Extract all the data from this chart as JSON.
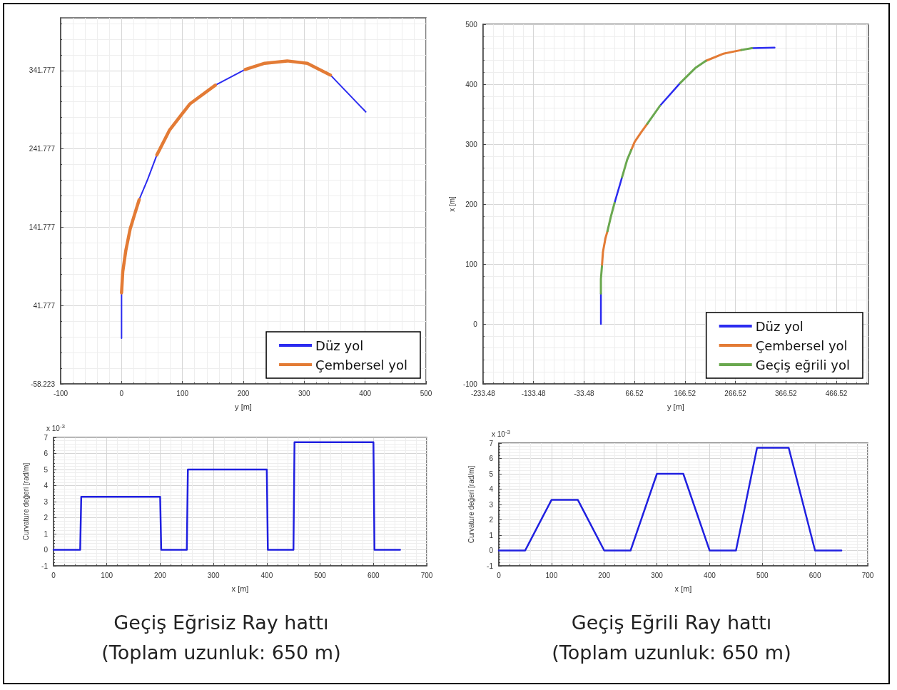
{
  "chart_data": [
    {
      "type": "line",
      "xlabel": "y [m]",
      "xlim": [
        -100,
        500
      ],
      "xticks": [
        -100,
        0,
        100,
        200,
        300,
        400,
        500
      ],
      "ylim": [
        -58.223,
        409
      ],
      "yticks": [
        -58.223,
        41.777,
        141.777,
        241.777,
        341.777
      ],
      "grid": true,
      "legend": "bottom right",
      "series": [
        {
          "name": "Düz yol",
          "color": "#2b2bf0",
          "x": [
            0,
            0,
            null,
            29,
            43,
            58,
            null,
            154,
            203,
            null,
            343,
            401
          ],
          "values": [
            0,
            58,
            null,
            177,
            203,
            234,
            null,
            323,
            343,
            null,
            336,
            289
          ]
        },
        {
          "name": "Çembersel yol",
          "color": "#e37b35",
          "x": [
            0,
            2,
            7,
            14,
            21,
            29,
            null,
            58,
            79,
            112,
            154,
            null,
            203,
            235,
            272,
            305,
            343
          ],
          "values": [
            58,
            85,
            112,
            139,
            157,
            177,
            null,
            234,
            266,
            299,
            323,
            null,
            343,
            351,
            354,
            351,
            336
          ]
        }
      ]
    },
    {
      "type": "line",
      "xlabel": "y [m]",
      "ylabel": "x [m]",
      "xlim": [
        -233.48,
        530
      ],
      "xticks": [
        -233.48,
        -133.48,
        -33.48,
        66.52,
        166.52,
        266.52,
        366.52,
        466.52
      ],
      "ylim": [
        -100,
        500
      ],
      "yticks": [
        -100,
        0,
        100,
        200,
        300,
        400,
        500
      ],
      "grid": true,
      "legend": "bottom right",
      "series": [
        {
          "name": "Düz yol",
          "color": "#2b2bf0",
          "x": [
            0,
            0,
            null,
            27,
            42,
            null,
            117,
            157,
            null,
            299,
            344
          ],
          "values": [
            0,
            51,
            null,
            202,
            245,
            null,
            364,
            402,
            null,
            460,
            461
          ]
        },
        {
          "name": "Çembersel yol",
          "color": "#e37b35",
          "x": [
            2,
            4,
            9,
            13,
            null,
            60,
            67,
            80,
            92,
            null,
            208,
            243,
            278
          ],
          "values": [
            96,
            120,
            143,
            155,
            null,
            290,
            304,
            320,
            334,
            null,
            439,
            451,
            457
          ]
        },
        {
          "name": "Geçiş eğrili yol",
          "color": "#6aa84f",
          "x": [
            0,
            0,
            2,
            null,
            13,
            20,
            27,
            null,
            42,
            52,
            60,
            null,
            92,
            117,
            null,
            157,
            187,
            208,
            null,
            278,
            299
          ],
          "values": [
            51,
            75,
            96,
            null,
            155,
            180,
            202,
            null,
            245,
            274,
            290,
            null,
            334,
            364,
            null,
            402,
            427,
            439,
            null,
            457,
            460
          ]
        }
      ]
    },
    {
      "type": "line",
      "xlabel": "x [m]",
      "ylabel": "Curvature değeri [rad/m]",
      "xlim": [
        0,
        700
      ],
      "xticks": [
        0,
        100,
        200,
        300,
        400,
        500,
        600,
        700
      ],
      "ylim": [
        -1,
        7
      ],
      "yticks": [
        -1,
        0,
        1,
        2,
        3,
        4,
        5,
        6,
        7
      ],
      "grid": true,
      "annotations": [
        "x 10$^{-3}$",
        "Geçiş Eğrisiz Ray hattı",
        "(Toplam uzunluk: 650 m)"
      ],
      "series": [
        {
          "color": "#2020e0",
          "x": [
            0,
            50,
            52,
            200,
            202,
            250,
            252,
            400,
            402,
            450,
            452,
            600,
            602,
            650
          ],
          "values": [
            0,
            0,
            3.3,
            3.3,
            0,
            0,
            5,
            5,
            0,
            0,
            6.7,
            6.7,
            0,
            0
          ]
        }
      ]
    },
    {
      "type": "line",
      "xlabel": "x [m]",
      "ylabel": "Curvature değeri [rad/m]",
      "xlim": [
        0,
        700
      ],
      "xticks": [
        0,
        100,
        200,
        300,
        400,
        500,
        600,
        700
      ],
      "ylim": [
        -1,
        7
      ],
      "yticks": [
        -1,
        0,
        1,
        2,
        3,
        4,
        5,
        6,
        7
      ],
      "grid": true,
      "annotations": [
        "x 10$^{-3}$",
        "Geçiş Eğrili Ray hattı",
        "(Toplam uzunluk: 650 m)"
      ],
      "series": [
        {
          "color": "#2020e0",
          "x": [
            0,
            50,
            100,
            150,
            200,
            250,
            300,
            350,
            400,
            450,
            490,
            550,
            600,
            650
          ],
          "values": [
            0,
            0,
            3.3,
            3.3,
            0,
            0,
            5,
            5,
            0,
            0,
            6.7,
            6.7,
            0,
            0
          ]
        }
      ]
    }
  ]
}
